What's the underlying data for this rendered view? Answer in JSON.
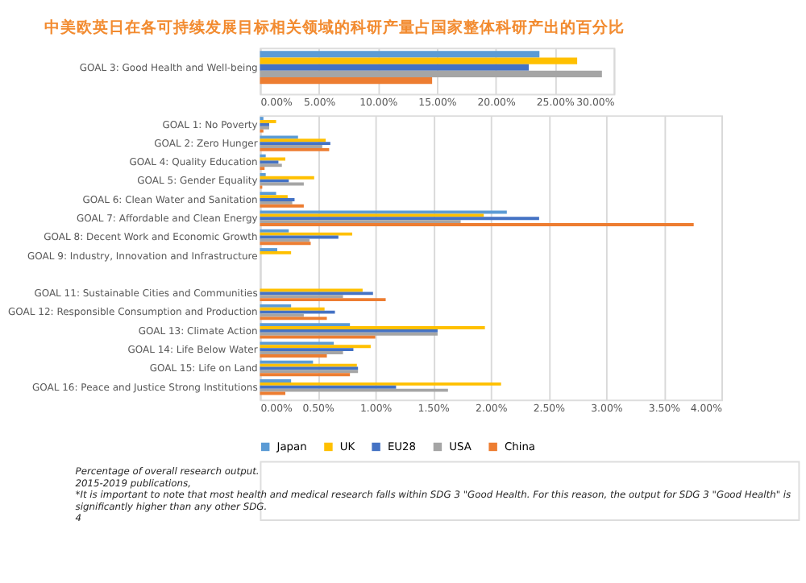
{
  "chart_data": [
    {
      "type": "bar",
      "orientation": "horizontal",
      "title": "中美欧英日在各可持续发展目标相关领域的科研产量占国家整体科研产出的百分比",
      "categories": [
        "GOAL 3: Good Health and Well-being"
      ],
      "series": [
        {
          "color": "#5b9bd5",
          "values": [
            23.7
          ]
        },
        {
          "color": "#ffc000",
          "values": [
            26.9
          ]
        },
        {
          "color": "#4472c4",
          "values": [
            22.8
          ]
        },
        {
          "color": "#a5a5a5",
          "values": [
            29.0
          ]
        },
        {
          "color": "#ed7d31",
          "values": [
            14.6
          ]
        }
      ],
      "xlim": [
        0,
        30
      ],
      "xticks": [
        {
          "value": 0,
          "label": "0.00%"
        },
        {
          "value": 5,
          "label": "5.00%"
        },
        {
          "value": 10,
          "label": "10.00%"
        },
        {
          "value": 15,
          "label": "15.00%"
        },
        {
          "value": 20,
          "label": "20.00%"
        },
        {
          "value": 25,
          "label": "25.00%"
        },
        {
          "value": 30,
          "label": "30.00%"
        }
      ],
      "grid": "x"
    },
    {
      "type": "bar",
      "orientation": "horizontal",
      "categories": [
        "GOAL 1: No Poverty",
        "GOAL 2: Zero Hunger",
        "GOAL 4: Quality Education",
        "GOAL 5: Gender Equality",
        "GOAL 6: Clean Water and Sanitation",
        "GOAL 7: Affordable and Clean Energy",
        "GOAL 8: Decent Work and Economic Growth",
        "GOAL 9: Industry, Innovation and Infrastructure",
        null,
        "GOAL 11: Sustainable Cities and Communities",
        "GOAL 12: Responsible Consumption and Production",
        "GOAL 13: Climate Action",
        "GOAL 14: Life Below Water",
        "GOAL 15: Life on Land",
        "GOAL 16: Peace and Justice Strong Institutions"
      ],
      "series": [
        {
          "name": "Japan",
          "color": "#5b9bd5",
          "values": [
            0.03,
            0.33,
            0.05,
            0.05,
            0.14,
            2.14,
            0.25,
            0.15,
            null,
            null,
            0.27,
            0.78,
            0.64,
            0.46,
            0.27
          ]
        },
        {
          "name": "UK",
          "color": "#ffc000",
          "values": [
            0.14,
            0.57,
            0.22,
            0.47,
            0.24,
            1.94,
            0.8,
            0.27,
            null,
            0.89,
            0.56,
            1.95,
            0.96,
            0.84,
            2.09
          ]
        },
        {
          "name": "EU28",
          "color": "#4472c4",
          "values": [
            0.08,
            0.61,
            0.16,
            0.25,
            0.3,
            2.42,
            0.68,
            null,
            null,
            0.98,
            0.65,
            1.54,
            0.81,
            0.85,
            1.18
          ]
        },
        {
          "name": "USA",
          "color": "#a5a5a5",
          "values": [
            0.08,
            0.54,
            0.19,
            0.38,
            0.28,
            1.74,
            0.43,
            null,
            null,
            0.72,
            0.38,
            1.54,
            0.72,
            0.85,
            1.63
          ]
        },
        {
          "name": "China",
          "color": "#ed7d31",
          "values": [
            0.03,
            0.6,
            0.04,
            0.02,
            0.38,
            3.76,
            0.44,
            null,
            null,
            1.09,
            0.58,
            1.0,
            0.58,
            0.78,
            0.22
          ]
        }
      ],
      "xlim": [
        0,
        4
      ],
      "xticks": [
        {
          "value": 0,
          "label": "0.00%"
        },
        {
          "value": 0.5,
          "label": "0.50%"
        },
        {
          "value": 1,
          "label": "1.00%"
        },
        {
          "value": 1.5,
          "label": "1.50%"
        },
        {
          "value": 2,
          "label": "2.00%"
        },
        {
          "value": 2.5,
          "label": "2.50%"
        },
        {
          "value": 3,
          "label": "3.00%"
        },
        {
          "value": 3.5,
          "label": "3.50%"
        },
        {
          "value": 4,
          "label": "4.00%"
        }
      ],
      "grid": "x",
      "legend": "bottom",
      "annotations": [
        "Percentage of overall research output.",
        "2015-2019 publications,",
        "*It is important to note that most health and medical research falls within SDG 3 \"Good Health. For this reason, the output for SDG 3 \"Good Health\" is",
        "significantly higher than any other SDG.",
        "4"
      ]
    }
  ]
}
